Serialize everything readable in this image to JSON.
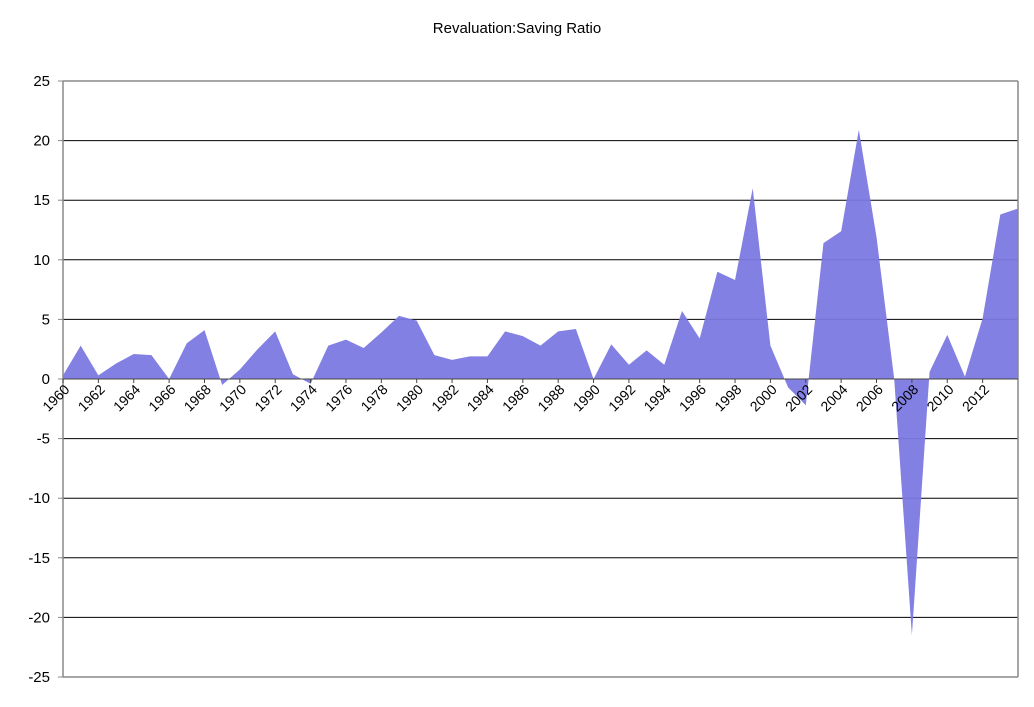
{
  "chart_data": {
    "type": "area",
    "title": "Revaluation:Saving Ratio",
    "xlabel": "",
    "ylabel": "",
    "ylim": [
      -25,
      25
    ],
    "yticks": [
      25,
      20,
      15,
      10,
      5,
      0,
      -5,
      -10,
      -15,
      -20,
      -25
    ],
    "xtick_labels": [
      "1960",
      "1962",
      "1964",
      "1966",
      "1968",
      "1970",
      "1972",
      "1974",
      "1976",
      "1978",
      "1980",
      "1982",
      "1984",
      "1986",
      "1988",
      "1990",
      "1992",
      "1994",
      "1996",
      "1998",
      "2000",
      "2002",
      "2004",
      "2006",
      "2008",
      "2010",
      "2012"
    ],
    "grid": true,
    "legend": "none",
    "fill_color": "#7b79e0",
    "x": [
      1960,
      1961,
      1962,
      1963,
      1964,
      1965,
      1966,
      1967,
      1968,
      1969,
      1970,
      1971,
      1972,
      1973,
      1974,
      1975,
      1976,
      1977,
      1978,
      1979,
      1980,
      1981,
      1982,
      1983,
      1984,
      1985,
      1986,
      1987,
      1988,
      1989,
      1990,
      1991,
      1992,
      1993,
      1994,
      1995,
      1996,
      1997,
      1998,
      1999,
      2000,
      2001,
      2002,
      2003,
      2004,
      2005,
      2006,
      2007,
      2008,
      2009,
      2010,
      2011,
      2012,
      2013,
      2014
    ],
    "values": [
      0.3,
      2.8,
      0.3,
      1.3,
      2.1,
      2.0,
      0.0,
      3.0,
      4.1,
      -0.5,
      0.8,
      2.5,
      4.0,
      0.4,
      -0.4,
      2.8,
      3.3,
      2.6,
      3.9,
      5.3,
      4.9,
      2.0,
      1.6,
      1.9,
      1.9,
      4.0,
      3.6,
      2.8,
      4.0,
      4.2,
      0.0,
      2.9,
      1.2,
      2.4,
      1.2,
      5.7,
      3.4,
      9.0,
      8.3,
      16.0,
      2.8,
      -0.7,
      -2.2,
      11.4,
      12.4,
      20.9,
      11.9,
      0.0,
      -21.5,
      0.6,
      3.7,
      0.2,
      5.1,
      13.8,
      14.3
    ]
  }
}
